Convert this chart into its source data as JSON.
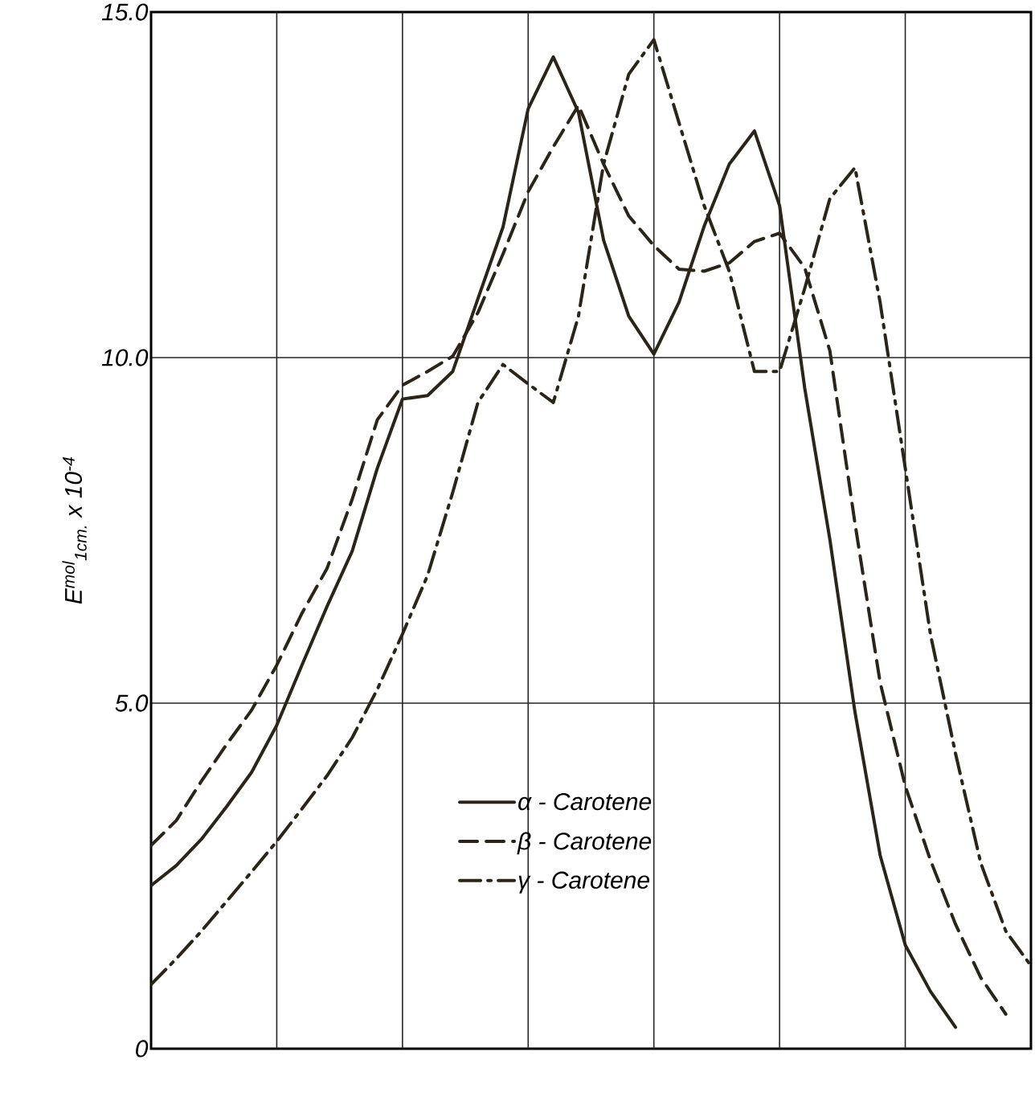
{
  "chart_data": {
    "type": "line",
    "ylabel": "E$^{mol}$$_{1cm.}$ x 10$^{-4}$",
    "categories": [
      null,
      null,
      null,
      null,
      null,
      null,
      null,
      null,
      null,
      null,
      null,
      null,
      null,
      null,
      null,
      null,
      null,
      null,
      null,
      null,
      null,
      null,
      null,
      null,
      null,
      null,
      null,
      null,
      null,
      null,
      null,
      null,
      null,
      null,
      null,
      null
    ],
    "ylim": [
      0,
      15
    ],
    "yticks": [
      {
        "value": 0,
        "label": "0"
      },
      {
        "value": 5,
        "label": "5.0"
      },
      {
        "value": 10,
        "label": "10.0"
      },
      {
        "value": 15,
        "label": "15.0"
      }
    ],
    "grid": true,
    "legend": "bottom",
    "series": [
      {
        "name": "α - Carotene",
        "color": "#2b2418",
        "line_style": "solid",
        "values": [
          2.36,
          2.65,
          3.03,
          3.5,
          4.0,
          4.68,
          5.55,
          6.4,
          7.2,
          8.4,
          9.4,
          9.45,
          9.8,
          10.85,
          11.89,
          13.6,
          14.35,
          13.55,
          11.7,
          10.6,
          10.05,
          10.8,
          11.9,
          12.8,
          13.28,
          12.2,
          9.56,
          7.37,
          4.87,
          2.8,
          1.5,
          0.83,
          0.31,
          null,
          null,
          null
        ]
      },
      {
        "name": "β - Carotene",
        "color": "#2b2418",
        "line_style": "dashed",
        "values": [
          2.94,
          3.3,
          3.87,
          4.4,
          4.9,
          5.55,
          6.3,
          6.95,
          7.95,
          9.1,
          9.6,
          9.8,
          10.02,
          10.65,
          11.5,
          12.4,
          13.05,
          13.65,
          12.8,
          12.05,
          11.62,
          11.28,
          11.25,
          11.37,
          11.68,
          11.8,
          11.3,
          10.1,
          7.6,
          5.3,
          3.8,
          2.73,
          1.8,
          1.03,
          0.5,
          null
        ]
      },
      {
        "name": "γ - Carotene",
        "color": "#2b2418",
        "line_style": "dashdot",
        "values": [
          0.93,
          1.3,
          1.7,
          2.13,
          2.56,
          3.0,
          3.47,
          3.95,
          4.5,
          5.2,
          6.0,
          6.85,
          8.05,
          9.35,
          9.9,
          9.62,
          9.35,
          10.6,
          12.8,
          14.1,
          14.6,
          13.4,
          12.2,
          11.25,
          9.8,
          9.8,
          11.0,
          12.3,
          12.75,
          10.8,
          8.4,
          6.0,
          4.27,
          2.69,
          1.7,
          1.2
        ]
      }
    ]
  }
}
